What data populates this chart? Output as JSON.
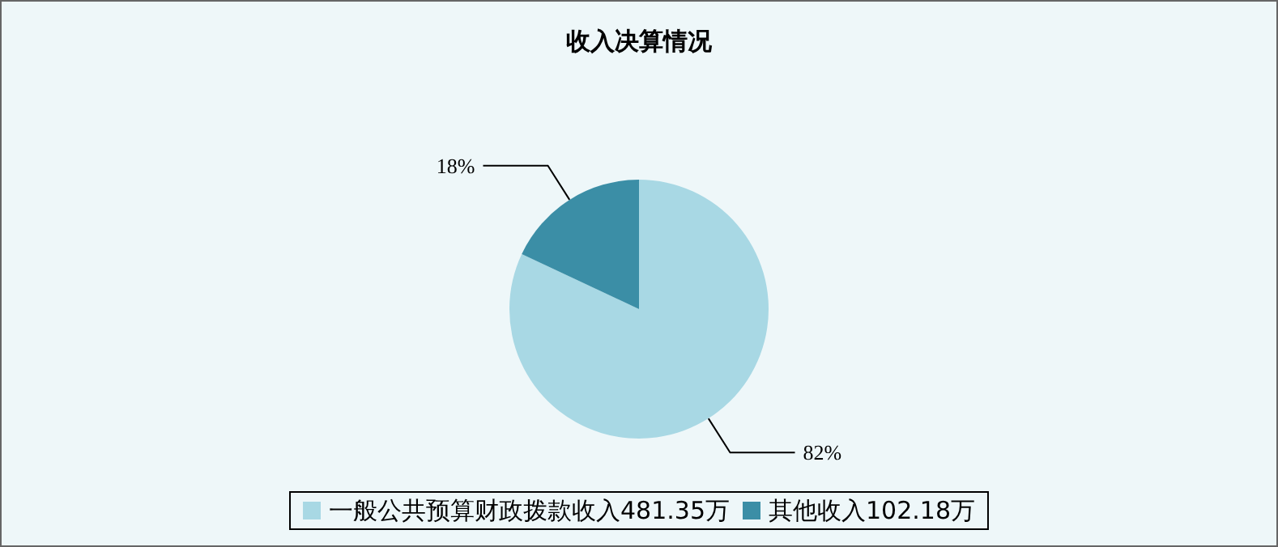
{
  "chart_data": {
    "type": "pie",
    "title": "收入决算情况",
    "categories": [
      "一般公共预算财政拨款收入481.35万",
      "其他收入102.18万"
    ],
    "values": [
      82,
      18
    ],
    "colors": [
      "#a8d8e4",
      "#3b8ea6"
    ],
    "value_labels": [
      "82%",
      "18%"
    ],
    "legend": "bottom"
  }
}
